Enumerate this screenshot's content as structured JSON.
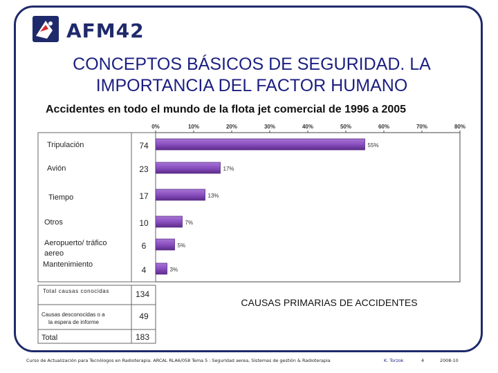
{
  "logo": {
    "text": "AFM42"
  },
  "title": "CONCEPTOS BÁSICOS DE SEGURIDAD. LA IMPORTANCIA DEL FACTOR HUMANO",
  "subtitle": "Accidentes en todo el mundo de la flota jet comercial de 1996 a 2005",
  "colors": {
    "bar": "#8a4fc0",
    "bar_dark": "#5b2c88",
    "title": "#1b1f80",
    "frame": "#1f2a6b"
  },
  "chart_data": {
    "type": "bar",
    "orientation": "horizontal",
    "title": "CAUSAS PRIMARIAS DE ACCIDENTES",
    "xlim": [
      0,
      80
    ],
    "ticks": [
      "0%",
      "10%",
      "20%",
      "30%",
      "40%",
      "50%",
      "60%",
      "70%",
      "80%"
    ],
    "categories": [
      {
        "label": "Tripulación",
        "count": "74",
        "value": 55,
        "value_label": "55%"
      },
      {
        "label": "Avión",
        "count": "23",
        "value": 17,
        "value_label": "17%"
      },
      {
        "label": "Tiempo",
        "count": "17",
        "value": 13,
        "value_label": "13%"
      },
      {
        "label": "Otros",
        "count": "10",
        "value": 7,
        "value_label": "7%"
      },
      {
        "label": "Aeropuerto/ tráfico aereo",
        "count": "6",
        "value": 5,
        "value_label": "5%"
      },
      {
        "label": "Mantenimiento",
        "count": "4",
        "value": 3,
        "value_label": "3%"
      }
    ],
    "summary": [
      {
        "label": "Total causas conocidas",
        "count": "134"
      },
      {
        "label": "Causas desconocidas o a la espera de informe",
        "count": "49"
      },
      {
        "label": "Total",
        "count": "183"
      }
    ]
  },
  "footer": {
    "course": "Curso de Actualización para Tecnólogos en Radioterapia.  ARCAL RLA6/058   Tema 5 : Seguridad aerea, Sistemas de gestión & Radioterapia",
    "author": "K. Torzok",
    "page": "4",
    "date": "2008-10"
  }
}
